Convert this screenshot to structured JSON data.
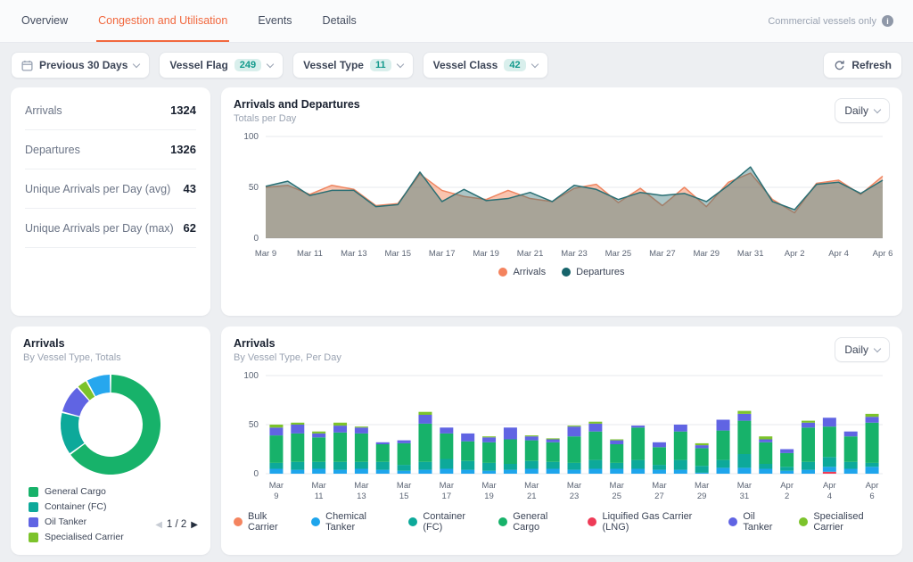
{
  "nav": {
    "tabs": [
      {
        "label": "Overview",
        "active": false
      },
      {
        "label": "Congestion and Utilisation",
        "active": true
      },
      {
        "label": "Events",
        "active": false
      },
      {
        "label": "Details",
        "active": false
      }
    ],
    "note": "Commercial vessels only"
  },
  "filters": {
    "chips": [
      {
        "label": "Previous 30 Days",
        "icon": "calendar-icon",
        "badge": null
      },
      {
        "label": "Vessel Flag",
        "icon": null,
        "badge": "249"
      },
      {
        "label": "Vessel Type",
        "icon": null,
        "badge": "11"
      },
      {
        "label": "Vessel Class",
        "icon": null,
        "badge": "42"
      }
    ],
    "refresh_label": "Refresh"
  },
  "stats": {
    "rows": [
      {
        "label": "Arrivals",
        "value": "1324"
      },
      {
        "label": "Departures",
        "value": "1326"
      },
      {
        "label": "Unique Arrivals per Day (avg)",
        "value": "43"
      },
      {
        "label": "Unique Arrivals per Day (max)",
        "value": "62"
      }
    ]
  },
  "cards": {
    "area": {
      "title": "Arrivals and Departures",
      "subtitle": "Totals per Day",
      "interval": "Daily"
    },
    "donut": {
      "title": "Arrivals",
      "subtitle": "By Vessel Type, Totals",
      "page": "1 / 2"
    },
    "bars": {
      "title": "Arrivals",
      "subtitle": "By Vessel Type, Per Day",
      "interval": "Daily"
    }
  },
  "colors": {
    "accent_orange": "#f1683e",
    "arrivals": "#ee8560",
    "departures": "#25707a",
    "badge_bg": "#d9efec",
    "badge_text": "#149a8c",
    "grid": "#e7e9ee",
    "axis_text": "#5c6575"
  },
  "chart_data": [
    {
      "type": "area",
      "title": "Arrivals and Departures",
      "subtitle": "Totals per Day",
      "x": [
        "Mar 9",
        "Mar 10",
        "Mar 11",
        "Mar 12",
        "Mar 13",
        "Mar 14",
        "Mar 15",
        "Mar 16",
        "Mar 17",
        "Mar 18",
        "Mar 19",
        "Mar 20",
        "Mar 21",
        "Mar 22",
        "Mar 23",
        "Mar 24",
        "Mar 25",
        "Mar 26",
        "Mar 27",
        "Mar 28",
        "Mar 29",
        "Mar 30",
        "Mar 31",
        "Apr 1",
        "Apr 2",
        "Apr 3",
        "Apr 4",
        "Apr 5",
        "Apr 6"
      ],
      "x_tick_every": 2,
      "ylim": [
        0,
        100
      ],
      "yticks": [
        0,
        50,
        100
      ],
      "series": [
        {
          "name": "Arrivals",
          "color": "#ee8560",
          "fill": "rgba(243,137,96,0.50)",
          "values": [
            50,
            52,
            43,
            52,
            48,
            32,
            34,
            63,
            47,
            41,
            38,
            47,
            39,
            36,
            49,
            53,
            35,
            49,
            32,
            50,
            31,
            55,
            64,
            38,
            25,
            54,
            57,
            43,
            61
          ]
        },
        {
          "name": "Departures",
          "color": "#2a6f74",
          "fill": "rgba(58,120,122,0.42)",
          "values": [
            51,
            56,
            42,
            47,
            47,
            31,
            33,
            65,
            36,
            48,
            37,
            39,
            45,
            36,
            52,
            48,
            38,
            45,
            42,
            44,
            36,
            52,
            70,
            36,
            28,
            53,
            55,
            44,
            57
          ]
        }
      ],
      "legend_position": "bottom-center"
    },
    {
      "type": "pie",
      "title": "Arrivals",
      "subtitle": "By Vessel Type, Totals",
      "segments": [
        {
          "name": "General Cargo",
          "color": "#17b26a",
          "pct": 65
        },
        {
          "name": "Container (FC)",
          "color": "#0da99a",
          "pct": 14
        },
        {
          "name": "Oil Tanker",
          "color": "#6064e3",
          "pct": 9.5
        },
        {
          "name": "Specialised Carrier",
          "color": "#7cc32b",
          "pct": 3.5
        },
        {
          "name": "Chemical Tanker",
          "color": "#26a7ee",
          "pct": 8
        }
      ],
      "legend_visible": [
        "General Cargo",
        "Container (FC)",
        "Oil Tanker",
        "Specialised Carrier"
      ],
      "legend_page": "1 / 2"
    },
    {
      "type": "bar",
      "title": "Arrivals",
      "subtitle": "By Vessel Type, Per Day",
      "x": [
        "Mar 9",
        "Mar 10",
        "Mar 11",
        "Mar 12",
        "Mar 13",
        "Mar 14",
        "Mar 15",
        "Mar 16",
        "Mar 17",
        "Mar 18",
        "Mar 19",
        "Mar 20",
        "Mar 21",
        "Mar 22",
        "Mar 23",
        "Mar 24",
        "Mar 25",
        "Mar 26",
        "Mar 27",
        "Mar 28",
        "Mar 29",
        "Mar 30",
        "Mar 31",
        "Apr 1",
        "Apr 2",
        "Apr 3",
        "Apr 4",
        "Apr 5",
        "Apr 6"
      ],
      "x_tick_every": 2,
      "ylim": [
        0,
        100
      ],
      "yticks": [
        0,
        50,
        100
      ],
      "stack_order": [
        "Liquified Gas Carrier (LNG)",
        "Chemical Tanker",
        "Container (FC)",
        "General Cargo",
        "Oil Tanker",
        "Specialised Carrier",
        "Bulk Carrier"
      ],
      "series": [
        {
          "name": "Bulk Carrier",
          "color": "#f4845f",
          "values": [
            0,
            0,
            0,
            0,
            0,
            0,
            0,
            0,
            0,
            0,
            0,
            0,
            0,
            0,
            0,
            0,
            0,
            0,
            0,
            0,
            0,
            0,
            0,
            0,
            0,
            0,
            0,
            0,
            0
          ]
        },
        {
          "name": "Chemical Tanker",
          "color": "#1ea5ec",
          "values": [
            5,
            4,
            5,
            4,
            5,
            4,
            3,
            4,
            5,
            4,
            3,
            4,
            5,
            5,
            4,
            5,
            5,
            5,
            4,
            4,
            1,
            6,
            6,
            5,
            3,
            4,
            5,
            5,
            7
          ]
        },
        {
          "name": "Container (FC)",
          "color": "#0da99a",
          "values": [
            6,
            8,
            7,
            8,
            7,
            8,
            6,
            8,
            10,
            9,
            8,
            6,
            8,
            7,
            7,
            9,
            6,
            9,
            5,
            10,
            7,
            8,
            14,
            5,
            4,
            8,
            10,
            7,
            4
          ]
        },
        {
          "name": "General Cargo",
          "color": "#17b26a",
          "values": [
            28,
            29,
            25,
            30,
            29,
            18,
            22,
            39,
            26,
            20,
            21,
            25,
            21,
            20,
            27,
            29,
            19,
            33,
            18,
            29,
            18,
            30,
            34,
            22,
            14,
            35,
            31,
            26,
            41
          ]
        },
        {
          "name": "Liquified Gas Carrier (LNG)",
          "color": "#ee3b57",
          "values": [
            0,
            0,
            0,
            0,
            0,
            0,
            0,
            0,
            0,
            0,
            0,
            0,
            0,
            0,
            0,
            0,
            0,
            0,
            0,
            0,
            0,
            0,
            0,
            0,
            0,
            0,
            2,
            0,
            0
          ]
        },
        {
          "name": "Oil Tanker",
          "color": "#6064e3",
          "values": [
            8,
            9,
            4,
            7,
            6,
            2,
            3,
            9,
            6,
            8,
            5,
            12,
            4,
            3,
            10,
            8,
            4,
            2,
            5,
            7,
            3,
            11,
            7,
            3,
            4,
            5,
            9,
            5,
            6
          ]
        },
        {
          "name": "Specialised Carrier",
          "color": "#7cc32b",
          "values": [
            3,
            2,
            2,
            3,
            1,
            0,
            0,
            3,
            0,
            0,
            1,
            0,
            1,
            1,
            1,
            2,
            1,
            0,
            0,
            0,
            2,
            0,
            3,
            3,
            0,
            2,
            0,
            0,
            3
          ]
        }
      ],
      "legend_position": "bottom-center"
    }
  ]
}
